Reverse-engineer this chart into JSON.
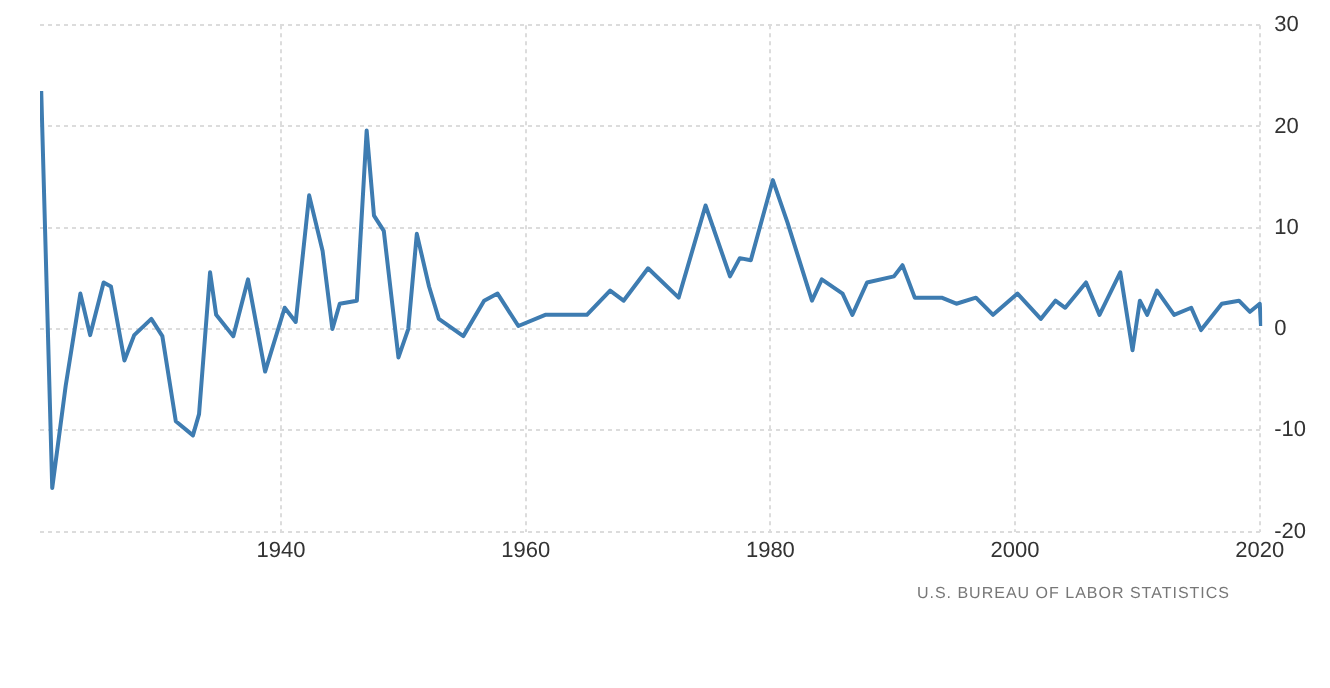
{
  "chart_data": {
    "type": "line",
    "x": [
      1920.4,
      1921.3,
      1922.4,
      1923.6,
      1924.4,
      1925.5,
      1926.1,
      1927.2,
      1928,
      1929.4,
      1930.3,
      1931.4,
      1932.8,
      1933.3,
      1934.2,
      1934.7,
      1936.1,
      1937.3,
      1938.7,
      1940.3,
      1941.2,
      1942.3,
      1943.4,
      1944.2,
      1944.8,
      1946.2,
      1947,
      1947.6,
      1948.4,
      1949.6,
      1950.4,
      1951.1,
      1952.1,
      1952.9,
      1954.9,
      1956.6,
      1957.7,
      1959.4,
      1961.6,
      1965,
      1966.9,
      1968,
      1970,
      1972.5,
      1974.7,
      1976.7,
      1977.5,
      1978.4,
      1980.2,
      1981.4,
      1983.4,
      1984.2,
      1985.9,
      1986.7,
      1987.9,
      1990.1,
      1990.8,
      1991.8,
      1994,
      1995.2,
      1996.8,
      1998.2,
      2000.2,
      2002.1,
      2003.3,
      2004.1,
      2005.8,
      2006.9,
      2008.6,
      2009.6,
      2010.2,
      2010.8,
      2011.6,
      2013,
      2014.4,
      2015.2,
      2016.9,
      2018.3,
      2019.2,
      2020,
      2020.1
    ],
    "series": [
      {
        "color": "#3e7cb1",
        "values": [
          23.5,
          -15.7,
          -5.6,
          3.5,
          -0.6,
          4.6,
          4.2,
          -3.1,
          -0.6,
          1,
          -0.7,
          -9.1,
          -10.5,
          -8.4,
          5.6,
          1.4,
          -0.7,
          4.9,
          -4.2,
          2.1,
          0.7,
          13.2,
          7.7,
          0,
          2.5,
          2.8,
          19.6,
          11.2,
          9.7,
          -2.8,
          0,
          9.4,
          4.2,
          1,
          -0.7,
          2.8,
          3.5,
          0.3,
          1.4,
          1.4,
          3.8,
          2.8,
          6.0,
          3.1,
          12.2,
          5.2,
          7,
          6.8,
          14.7,
          10.5,
          2.8,
          4.9,
          3.5,
          1.4,
          4.6,
          5.2,
          6.3,
          3.1,
          3.1,
          2.5,
          3.1,
          1.4,
          3.5,
          1.0,
          2.8,
          2.1,
          4.6,
          1.4,
          5.6,
          -2.1,
          2.8,
          1.4,
          3.8,
          1.4,
          2.1,
          -0.1,
          2.5,
          2.8,
          1.7,
          2.5,
          0.3
        ]
      }
    ],
    "xlim": [
      1920.3,
      2020.2
    ],
    "xticks": [
      1940,
      1960,
      1980,
      2000,
      2020
    ],
    "ylim": [
      -20,
      30
    ],
    "yticks": [
      -20,
      -10,
      0,
      10,
      20,
      30
    ],
    "grid": true,
    "legend": false,
    "marker": "none",
    "line_style": "solid",
    "annotations": [
      "U.S. BUREAU OF LABOR STATISTICS"
    ]
  }
}
